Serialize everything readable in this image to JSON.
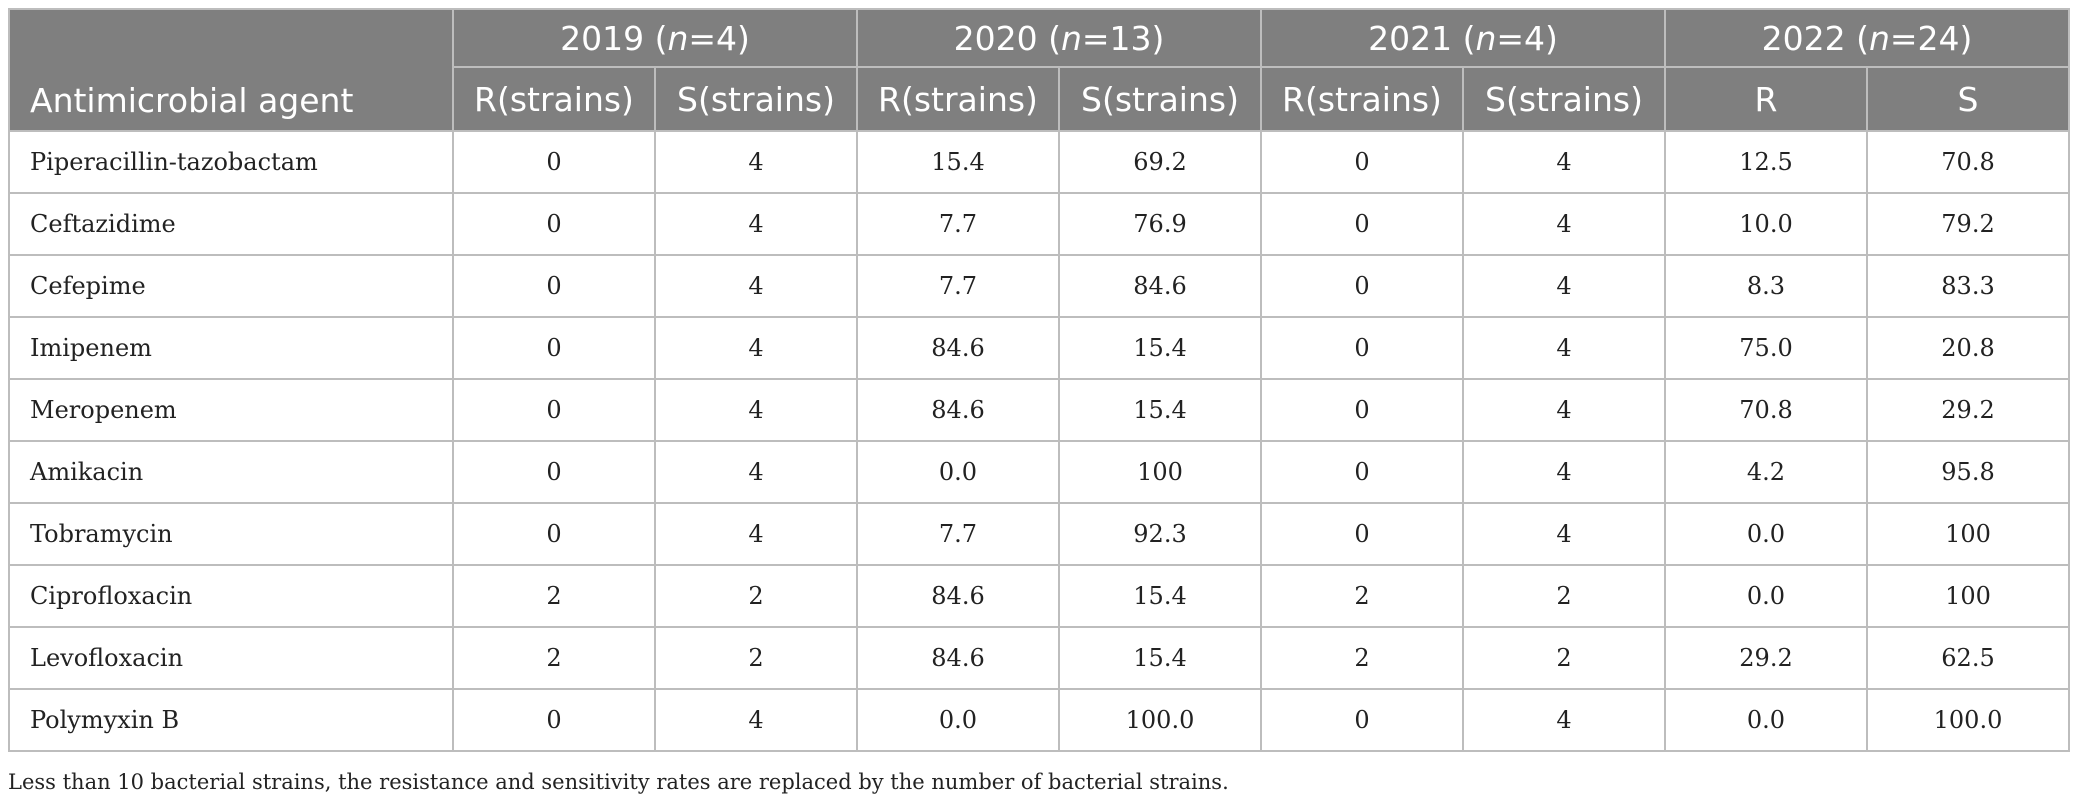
{
  "table": {
    "header": {
      "agent_label": "Antimicrobial agent",
      "groups": [
        {
          "year": "2019",
          "n_prefix": "(",
          "n_var": "n",
          "n_suffix": "=4)"
        },
        {
          "year": "2020",
          "n_prefix": "(",
          "n_var": "n",
          "n_suffix": "=13)"
        },
        {
          "year": "2021",
          "n_prefix": "(",
          "n_var": "n",
          "n_suffix": "=4)"
        },
        {
          "year": "2022",
          "n_prefix": "(",
          "n_var": "n",
          "n_suffix": "=24)"
        }
      ],
      "subheaders": [
        "R(strains)",
        "S(strains)",
        "R(strains)",
        "S(strains)",
        "R(strains)",
        "S(strains)",
        "R",
        "S"
      ]
    },
    "rows": [
      {
        "agent": "Piperacillin-tazobactam",
        "values": [
          "0",
          "4",
          "15.4",
          "69.2",
          "0",
          "4",
          "12.5",
          "70.8"
        ]
      },
      {
        "agent": "Ceftazidime",
        "values": [
          "0",
          "4",
          "7.7",
          "76.9",
          "0",
          "4",
          "10.0",
          "79.2"
        ]
      },
      {
        "agent": "Cefepime",
        "values": [
          "0",
          "4",
          "7.7",
          "84.6",
          "0",
          "4",
          "8.3",
          "83.3"
        ]
      },
      {
        "agent": "Imipenem",
        "values": [
          "0",
          "4",
          "84.6",
          "15.4",
          "0",
          "4",
          "75.0",
          "20.8"
        ]
      },
      {
        "agent": "Meropenem",
        "values": [
          "0",
          "4",
          "84.6",
          "15.4",
          "0",
          "4",
          "70.8",
          "29.2"
        ]
      },
      {
        "agent": "Amikacin",
        "values": [
          "0",
          "4",
          "0.0",
          "100",
          "0",
          "4",
          "4.2",
          "95.8"
        ]
      },
      {
        "agent": "Tobramycin",
        "values": [
          "0",
          "4",
          "7.7",
          "92.3",
          "0",
          "4",
          "0.0",
          "100"
        ]
      },
      {
        "agent": "Ciprofloxacin",
        "values": [
          "2",
          "2",
          "84.6",
          "15.4",
          "2",
          "2",
          "0.0",
          "100"
        ]
      },
      {
        "agent": "Levofloxacin",
        "values": [
          "2",
          "2",
          "84.6",
          "15.4",
          "2",
          "2",
          "29.2",
          "62.5"
        ]
      },
      {
        "agent": "Polymyxin B",
        "values": [
          "0",
          "4",
          "0.0",
          "100.0",
          "0",
          "4",
          "0.0",
          "100.0"
        ]
      }
    ]
  },
  "footnote": "Less than 10 bacterial strains, the resistance and sensitivity rates are replaced by the number of bacterial strains.",
  "colors": {
    "header_background": "#7f7f7f",
    "header_text": "#ffffff",
    "grid_lines": "#bdbdbd",
    "body_text": "#222222"
  }
}
